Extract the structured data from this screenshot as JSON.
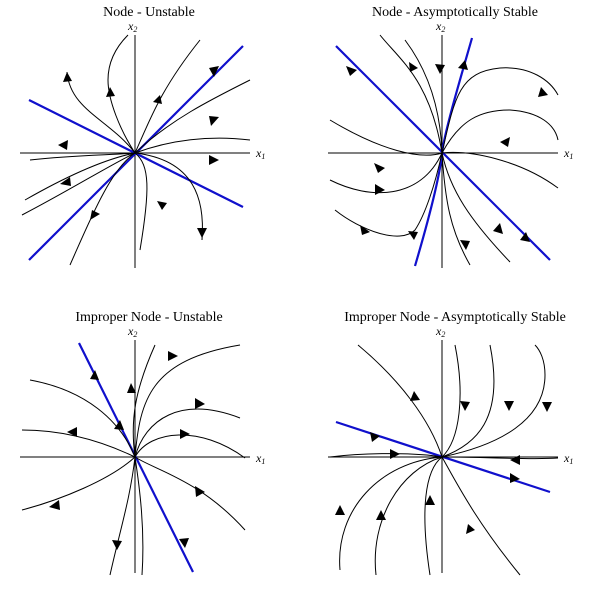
{
  "colors": {
    "eigen_line": "#1010cc",
    "trajectory": "#000000",
    "axis": "#000000",
    "background": "#ffffff"
  },
  "panels": [
    {
      "title": "Node - Unstable",
      "xlabel": "x",
      "xsub": "1",
      "ylabel": "x",
      "ysub": "2"
    },
    {
      "title": "Node - Asymptotically Stable",
      "xlabel": "x",
      "xsub": "1",
      "ylabel": "x",
      "ysub": "2"
    },
    {
      "title": "Improper Node - Unstable",
      "xlabel": "x",
      "xsub": "1",
      "ylabel": "x",
      "ysub": "2"
    },
    {
      "title": "Improper Node - Asymptotically Stable",
      "xlabel": "x",
      "xsub": "1",
      "ylabel": "x",
      "ysub": "2"
    }
  ]
}
